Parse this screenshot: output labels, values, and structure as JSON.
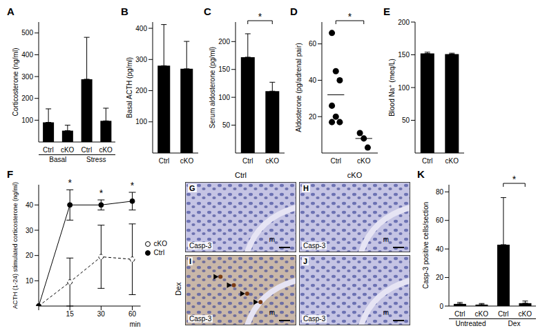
{
  "chart_data": [
    {
      "panel": "A",
      "type": "bar",
      "ylabel": "Corticosterone (ng/ml)",
      "categories": [
        "Ctrl",
        "cKO",
        "Ctrl",
        "cKO"
      ],
      "group_labels": [
        "Basal",
        "Stress"
      ],
      "values": [
        90,
        52,
        288,
        97
      ],
      "errors": [
        62,
        25,
        192,
        58
      ],
      "color": "#000000",
      "ylim": [
        0,
        550
      ],
      "yticks": [
        100,
        200,
        300,
        400,
        500
      ]
    },
    {
      "panel": "B",
      "type": "bar",
      "ylabel": "Basal ACTH (pg/ml)",
      "categories": [
        "Ctrl",
        "cKO"
      ],
      "values": [
        280,
        270
      ],
      "errors": [
        132,
        88
      ],
      "color": "#000000",
      "ylim": [
        0,
        420
      ],
      "yticks": [
        100,
        200,
        300,
        400
      ]
    },
    {
      "panel": "C",
      "type": "bar",
      "ylabel": "Serum aldosterone (pg/ml)",
      "categories": [
        "Ctrl",
        "cKO"
      ],
      "values": [
        172,
        111
      ],
      "errors": [
        42,
        16
      ],
      "color": "#000000",
      "ylim": [
        0,
        235
      ],
      "yticks": [
        50,
        100,
        150,
        200
      ],
      "significance": [
        {
          "between": [
            0,
            1
          ],
          "label": "*"
        }
      ]
    },
    {
      "panel": "D",
      "type": "scatter",
      "ylabel": "Aldosterone (pg/adrenal pair)",
      "categories": [
        "Ctrl",
        "cKO"
      ],
      "points": [
        [
          66,
          45,
          40,
          26,
          20,
          17,
          17
        ],
        [
          11,
          8,
          3
        ]
      ],
      "means": [
        32,
        8
      ],
      "color": "#000000",
      "ylim": [
        0,
        72
      ],
      "yticks": [
        20,
        40,
        60
      ],
      "significance": [
        {
          "between": [
            0,
            1
          ],
          "label": "*"
        }
      ]
    },
    {
      "panel": "E",
      "type": "bar",
      "ylabel": "Blood Na⁺ (meq/L)",
      "categories": [
        "Ctrl",
        "cKO"
      ],
      "values": [
        152,
        151
      ],
      "errors": [
        2,
        1.5
      ],
      "color": "#000000",
      "ylim": [
        0,
        200
      ],
      "yticks": [
        50,
        100,
        150,
        200
      ]
    },
    {
      "panel": "F",
      "type": "line",
      "ylabel": "ACTH (1-24) stimulated corticosterone (ng/ml)",
      "xlabel": "min",
      "categories": [
        null,
        "15",
        "30",
        "60"
      ],
      "series": [
        {
          "name": "cKO",
          "color": "#000000",
          "marker": "open_circle",
          "line_style": "dashed",
          "values": [
            0,
            9.5,
            19.5,
            18.5
          ],
          "errors": [
            0,
            9.5,
            12.5,
            14
          ]
        },
        {
          "name": "Ctrl",
          "color": "#000000",
          "marker": "circle",
          "line_style": "solid",
          "values": [
            0,
            40,
            40,
            41.5
          ],
          "errors": [
            0,
            6,
            2,
            3.5
          ]
        }
      ],
      "ylim": [
        0,
        48
      ],
      "yticks": [
        10,
        20,
        30,
        40
      ],
      "legend": "right",
      "significance": [
        {
          "at": 1,
          "label": "*"
        },
        {
          "at": 2,
          "label": "*"
        },
        {
          "at": 3,
          "label": "*"
        }
      ]
    },
    {
      "type": "image",
      "columns": [
        "Ctrl",
        "cKO"
      ],
      "row_labels": [
        null,
        "Dex"
      ],
      "tiles": [
        {
          "panel": "G",
          "stain": "Casp-3",
          "region": "m"
        },
        {
          "panel": "H",
          "stain": "Casp-3",
          "region": "m"
        },
        {
          "panel": "I",
          "stain": "Casp-3",
          "region": "m",
          "arrowheads": 4
        },
        {
          "panel": "J",
          "stain": "Casp-3",
          "region": "m"
        }
      ]
    },
    {
      "panel": "K",
      "type": "bar",
      "ylabel": "Casp-3 positive cells/section",
      "categories": [
        "Ctrl",
        "cKO",
        "Ctrl",
        "cKO"
      ],
      "group_labels": [
        "Untreated",
        "Dex"
      ],
      "values": [
        1.5,
        1,
        43,
        2
      ],
      "errors": [
        1,
        0.8,
        33,
        1.5
      ],
      "color": "#000000",
      "ylim": [
        0,
        85
      ],
      "yticks": [
        0,
        20,
        40,
        60,
        80
      ],
      "significance": [
        {
          "between": [
            2,
            3
          ],
          "label": "*"
        }
      ]
    }
  ]
}
